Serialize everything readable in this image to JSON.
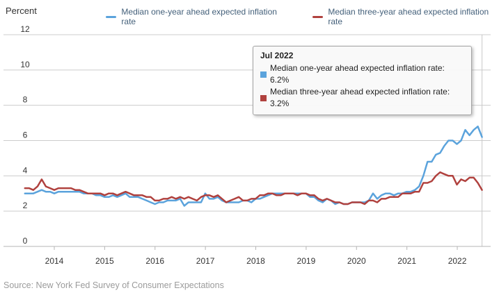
{
  "header": {
    "y_axis_title": "Percent",
    "legend": [
      {
        "name": "one-year",
        "label": "Median one-year ahead expected inflation rate",
        "color": "#5ba3dc"
      },
      {
        "name": "three-year",
        "label": "Median three-year ahead expected inflation rate",
        "color": "#b0413e"
      }
    ]
  },
  "tooltip": {
    "title": "Jul 2022",
    "rows": [
      {
        "text": "Median one-year ahead expected inflation rate: 6.2%",
        "color": "#5ba3dc"
      },
      {
        "text": "Median three-year ahead expected inflation rate: 3.2%",
        "color": "#b0413e"
      }
    ]
  },
  "source": "Source: New York Fed Survey of Consumer Expectations",
  "chart_data": {
    "type": "line",
    "title": "",
    "ylabel": "Percent",
    "ylim": [
      0,
      12
    ],
    "y_ticks": [
      0,
      2,
      4,
      6,
      8,
      10,
      12
    ],
    "grid": true,
    "legend_position": "top",
    "x_monthly_start": "2013-06",
    "x_monthly_end": "2022-07",
    "x_tick_labels": [
      "2014",
      "2015",
      "2016",
      "2017",
      "2018",
      "2019",
      "2020",
      "2021",
      "2022"
    ],
    "crosshair_x": "2022-07",
    "highlight": {
      "x": "Jul 2022",
      "one_year": 6.2,
      "three_year": 3.2
    },
    "series": [
      {
        "name": "Median one-year ahead expected inflation rate",
        "color": "#5ba3dc",
        "values": [
          3.0,
          3.0,
          3.0,
          3.1,
          3.2,
          3.1,
          3.1,
          3.0,
          3.1,
          3.1,
          3.1,
          3.1,
          3.1,
          3.1,
          3.0,
          3.0,
          3.0,
          2.9,
          2.9,
          2.8,
          2.8,
          2.9,
          2.8,
          2.9,
          3.0,
          2.8,
          2.8,
          2.8,
          2.7,
          2.6,
          2.5,
          2.4,
          2.5,
          2.5,
          2.6,
          2.6,
          2.6,
          2.7,
          2.3,
          2.5,
          2.5,
          2.5,
          2.5,
          3.0,
          2.7,
          2.7,
          2.8,
          2.6,
          2.5,
          2.5,
          2.5,
          2.5,
          2.6,
          2.6,
          2.5,
          2.7,
          2.7,
          2.8,
          2.9,
          3.0,
          3.0,
          3.0,
          3.0,
          3.0,
          3.0,
          3.0,
          3.0,
          3.0,
          2.8,
          2.8,
          2.6,
          2.5,
          2.7,
          2.6,
          2.4,
          2.5,
          2.4,
          2.4,
          2.5,
          2.5,
          2.5,
          2.5,
          2.6,
          3.0,
          2.7,
          2.9,
          3.0,
          3.0,
          2.9,
          3.0,
          3.0,
          3.1,
          3.1,
          3.2,
          3.4,
          4.0,
          4.8,
          4.8,
          5.2,
          5.3,
          5.7,
          6.0,
          6.0,
          5.8,
          6.0,
          6.6,
          6.3,
          6.6,
          6.8,
          6.2
        ]
      },
      {
        "name": "Median three-year ahead expected inflation rate",
        "color": "#b0413e",
        "values": [
          3.3,
          3.3,
          3.2,
          3.4,
          3.8,
          3.4,
          3.3,
          3.2,
          3.3,
          3.3,
          3.3,
          3.3,
          3.2,
          3.2,
          3.1,
          3.0,
          3.0,
          3.0,
          3.0,
          2.9,
          3.0,
          3.0,
          2.9,
          3.0,
          3.1,
          3.0,
          2.9,
          2.9,
          2.9,
          2.8,
          2.8,
          2.6,
          2.6,
          2.7,
          2.7,
          2.8,
          2.7,
          2.8,
          2.7,
          2.8,
          2.7,
          2.6,
          2.8,
          2.9,
          2.9,
          2.8,
          2.9,
          2.7,
          2.5,
          2.6,
          2.7,
          2.8,
          2.6,
          2.6,
          2.7,
          2.7,
          2.9,
          2.9,
          3.0,
          3.0,
          2.9,
          2.9,
          3.0,
          3.0,
          3.0,
          2.9,
          3.0,
          3.0,
          2.9,
          2.9,
          2.7,
          2.6,
          2.7,
          2.6,
          2.5,
          2.5,
          2.4,
          2.4,
          2.5,
          2.5,
          2.5,
          2.4,
          2.6,
          2.6,
          2.5,
          2.7,
          2.7,
          2.8,
          2.8,
          2.8,
          3.0,
          3.0,
          3.0,
          3.1,
          3.1,
          3.6,
          3.6,
          3.7,
          4.0,
          4.2,
          4.1,
          4.0,
          4.0,
          3.5,
          3.8,
          3.7,
          3.9,
          3.9,
          3.6,
          3.2
        ]
      }
    ]
  }
}
